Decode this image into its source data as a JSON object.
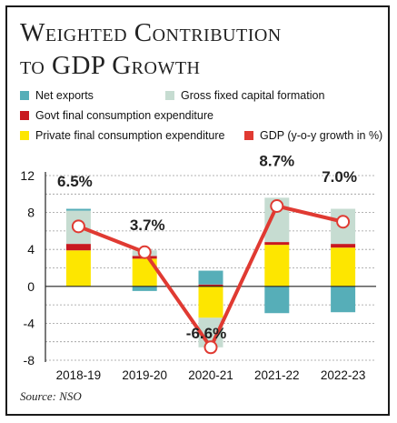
{
  "title_lines": [
    "Weighted Contribution",
    "to GDP Growth"
  ],
  "source": "Source: NSO",
  "colors": {
    "net_exports": "#56aeb8",
    "gfcf": "#c6dcd1",
    "govt": "#c8191f",
    "private": "#fde600",
    "gdp": "#e03a32"
  },
  "legend": [
    {
      "label": "Net exports",
      "color": "#56aeb8"
    },
    {
      "label": "Gross fixed capital formation",
      "color": "#c6dcd1"
    },
    {
      "label": "Govt final consumption expenditure",
      "color": "#c8191f"
    },
    {
      "label": "Private final consumption expenditure",
      "color": "#fde600"
    },
    {
      "label": "GDP (y-o-y growth in %)",
      "color": "#e03a32"
    }
  ],
  "chart_data": {
    "type": "bar",
    "title": "Weighted Contribution to GDP Growth",
    "categories": [
      "2018-19",
      "2019-20",
      "2020-21",
      "2021-22",
      "2022-23"
    ],
    "ylim": [
      -8,
      12
    ],
    "yticks": [
      12,
      8,
      4,
      0,
      -4,
      -8
    ],
    "grid": true,
    "series": [
      {
        "name": "Private final consumption expenditure",
        "values": [
          3.9,
          3.0,
          -3.4,
          4.5,
          4.2
        ]
      },
      {
        "name": "Govt final consumption expenditure",
        "values": [
          0.7,
          0.3,
          0.2,
          0.3,
          0.4
        ]
      },
      {
        "name": "Gross fixed capital formation",
        "values": [
          3.6,
          0.6,
          -3.2,
          4.8,
          3.8
        ]
      },
      {
        "name": "Net exports",
        "values": [
          0.2,
          -0.5,
          1.5,
          -2.9,
          -2.8
        ]
      },
      {
        "name": "GDP (y-o-y growth in %)",
        "type": "line",
        "values": [
          6.5,
          3.7,
          -6.6,
          8.7,
          7.0
        ]
      }
    ],
    "line_labels": [
      "6.5%",
      "3.7%",
      "-6.6%",
      "8.7%",
      "7.0%"
    ]
  }
}
